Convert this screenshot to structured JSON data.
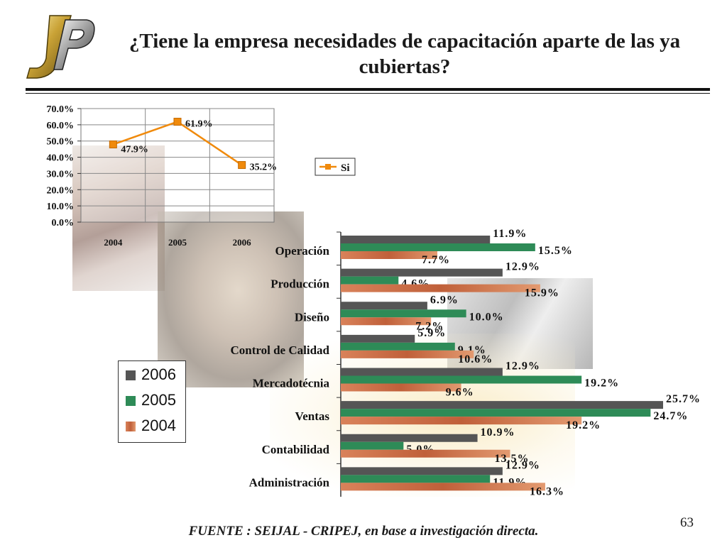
{
  "title": "¿Tiene la empresa necesidades de capacitación aparte de las ya cubiertas?",
  "source": "FUENTE :  SEIJAL - CRIPEJ,  en base a investigación directa.",
  "page_number": "63",
  "colors": {
    "line_series": "#f08a0c",
    "s2006": "#555555",
    "s2005": "#2e8b57",
    "s2004": "#c0603a"
  },
  "chart_data": [
    {
      "type": "line",
      "categories": [
        "2004",
        "2005",
        "2006"
      ],
      "series": [
        {
          "name": "Si",
          "values": [
            47.9,
            61.9,
            35.2
          ]
        }
      ],
      "data_labels": [
        "47.9%",
        "61.9%",
        "35.2%"
      ],
      "y_ticks": [
        "0.0%",
        "10.0%",
        "20.0%",
        "30.0%",
        "40.0%",
        "50.0%",
        "60.0%",
        "70.0%"
      ],
      "ylim": [
        0,
        70
      ],
      "grid": true,
      "legend": "right"
    },
    {
      "type": "bar",
      "orientation": "horizontal",
      "categories": [
        "Operación",
        "Producción",
        "Diseño",
        "Control de Calidad",
        "Mercadotécnia",
        "Ventas",
        "Contabilidad",
        "Administración"
      ],
      "series": [
        {
          "name": "2006",
          "values": [
            11.9,
            12.9,
            6.9,
            5.9,
            12.9,
            25.7,
            10.9,
            12.9
          ],
          "labels": [
            "11.9%",
            "12.9%",
            "6.9%",
            "5.9%",
            "12.9%",
            "25.7%",
            "10.9%",
            "12.9%"
          ]
        },
        {
          "name": "2005",
          "values": [
            15.5,
            4.6,
            10.0,
            9.1,
            19.2,
            24.7,
            5.0,
            11.9
          ],
          "labels": [
            "15.5%",
            "4.6%",
            "10.0%",
            "9.1%",
            "19.2%",
            "24.7%",
            "5.0%",
            "11.9%"
          ]
        },
        {
          "name": "2004",
          "values": [
            7.7,
            15.9,
            7.2,
            10.6,
            9.6,
            19.2,
            13.5,
            16.3
          ],
          "labels": [
            "7.7%",
            "15.9%",
            "7.2%",
            "10.6%",
            "9.6%",
            "19.2%",
            "13.5%",
            "16.3%"
          ]
        }
      ],
      "legend_order": [
        "2006",
        "2005",
        "2004"
      ],
      "legend": "left"
    }
  ]
}
